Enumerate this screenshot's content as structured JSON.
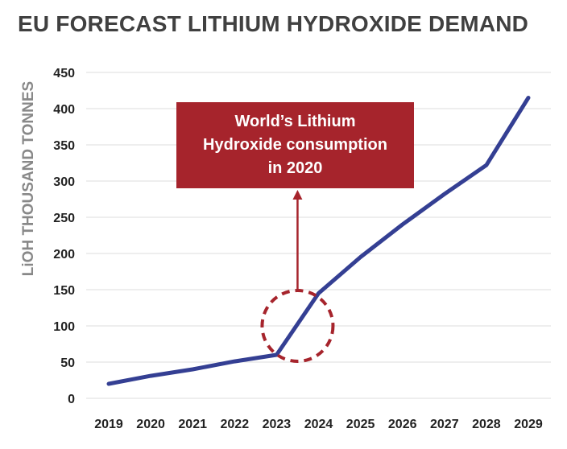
{
  "colors": {
    "line": "#343f93",
    "accent": "#a6242c",
    "grid": "#dddddd",
    "title": "#404040",
    "ylabel": "#888888"
  },
  "chart_data": {
    "type": "line",
    "title": "EU FORECAST LITHIUM HYDROXIDE DEMAND",
    "xlabel": "",
    "ylabel": "LiOH THOUSAND TONNES",
    "categories": [
      "2019",
      "2020",
      "2021",
      "2022",
      "2023",
      "2024",
      "2025",
      "2026",
      "2027",
      "2028",
      "2029"
    ],
    "values": [
      20,
      31,
      40,
      51,
      60,
      145,
      195,
      240,
      282,
      322,
      415
    ],
    "ylim": [
      0,
      450
    ],
    "yticks": [
      0,
      50,
      100,
      150,
      200,
      250,
      300,
      350,
      400,
      450
    ],
    "grid": true,
    "annotation": {
      "text": "World’s Lithium\nHydroxide consumption\nin 2020",
      "target_x_between": [
        "2023",
        "2024"
      ],
      "target_y": 100
    }
  }
}
